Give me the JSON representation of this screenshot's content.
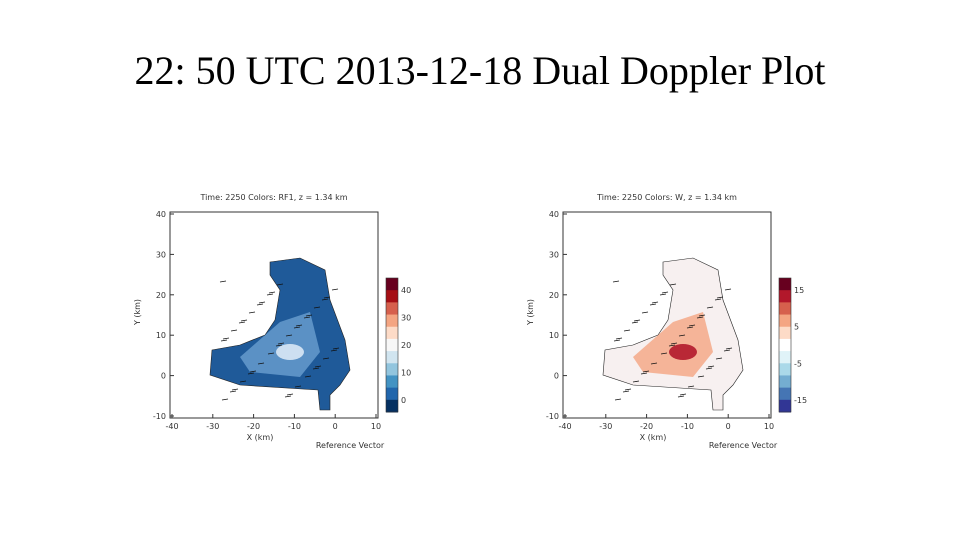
{
  "slide": {
    "title": "22: 50 UTC 2013-12-18 Dual Doppler Plot",
    "panels": [
      {
        "title": "Time: 2250 Colors: RF1, z = 1.34 km",
        "x_label": "X (km)",
        "y_label": "Y (km)",
        "x_ticks": [
          "-40",
          "-30",
          "-20",
          "-10",
          "0",
          "10"
        ],
        "y_ticks": [
          "40",
          "30",
          "20",
          "10",
          "0",
          "-10"
        ],
        "colorbar_ticks": [
          "40",
          "30",
          "20",
          "10",
          "0"
        ],
        "reference": "Reference Vector"
      },
      {
        "title": "Time: 2250 Colors: W, z = 1.34 km",
        "x_label": "X (km)",
        "y_label": "Y (km)",
        "x_ticks": [
          "-40",
          "-30",
          "-20",
          "-10",
          "0",
          "10"
        ],
        "y_ticks": [
          "40",
          "30",
          "20",
          "10",
          "0",
          "-10"
        ],
        "colorbar_ticks": [
          "15",
          "5",
          "-5",
          "-15"
        ],
        "reference": "Reference Vector"
      }
    ]
  }
}
